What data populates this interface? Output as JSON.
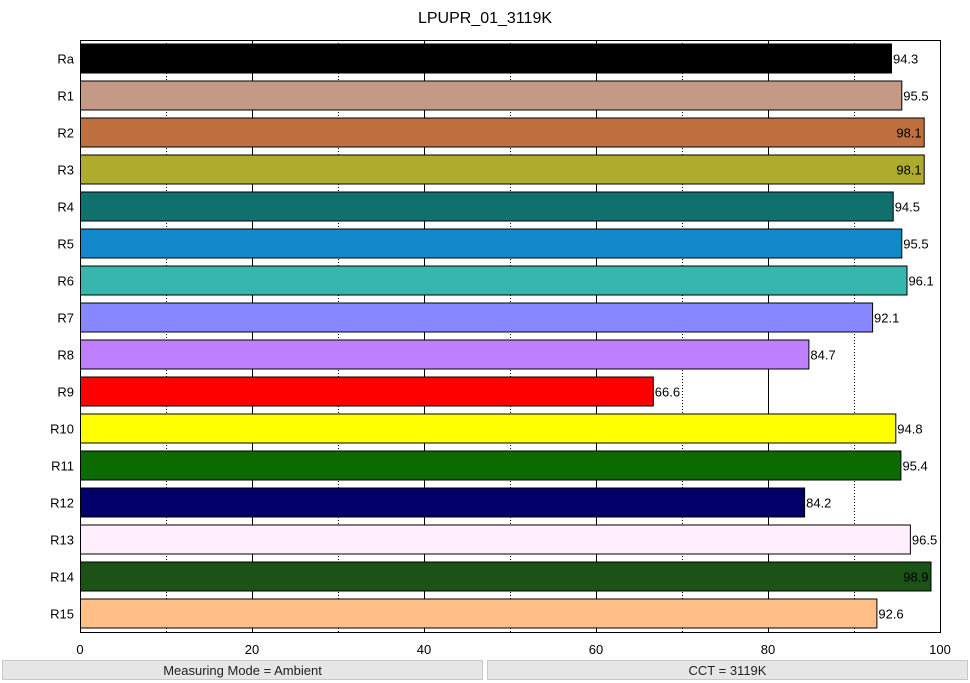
{
  "chart_data": {
    "type": "bar",
    "orientation": "horizontal",
    "title": "LPUPR_01_3119K",
    "xlabel": "",
    "ylabel": "",
    "xlim": [
      0,
      100
    ],
    "x_ticks": [
      0,
      20,
      40,
      60,
      80,
      100
    ],
    "grid": "vertical, dotted at odd multiples of 10, solid at multiples of 20",
    "categories": [
      "Ra",
      "R1",
      "R2",
      "R3",
      "R4",
      "R5",
      "R6",
      "R7",
      "R8",
      "R9",
      "R10",
      "R11",
      "R12",
      "R13",
      "R14",
      "R15"
    ],
    "values": [
      94.3,
      95.5,
      98.1,
      98.1,
      94.5,
      95.5,
      96.1,
      92.1,
      84.7,
      66.6,
      94.8,
      95.4,
      84.2,
      96.5,
      98.9,
      92.6
    ],
    "value_labels": [
      "94.3",
      "95.5",
      "98.1",
      "98.1",
      "94.5",
      "95.5",
      "96.1",
      "92.1",
      "84.7",
      "66.6",
      "94.8",
      "95.4",
      "84.2",
      "96.5",
      "98.9",
      "92.6"
    ],
    "colors": [
      "#000000",
      "#c49a86",
      "#bf7040",
      "#afab2b",
      "#0f706e",
      "#1289c8",
      "#36b6ad",
      "#8787ff",
      "#bf80ff",
      "#ff0000",
      "#ffff00",
      "#0b6a00",
      "#000068",
      "#ffeefb",
      "#1b5317",
      "#ffbf86"
    ]
  },
  "status": {
    "measuring_mode": "Measuring Mode = Ambient",
    "cct": "CCT = 3119K"
  }
}
